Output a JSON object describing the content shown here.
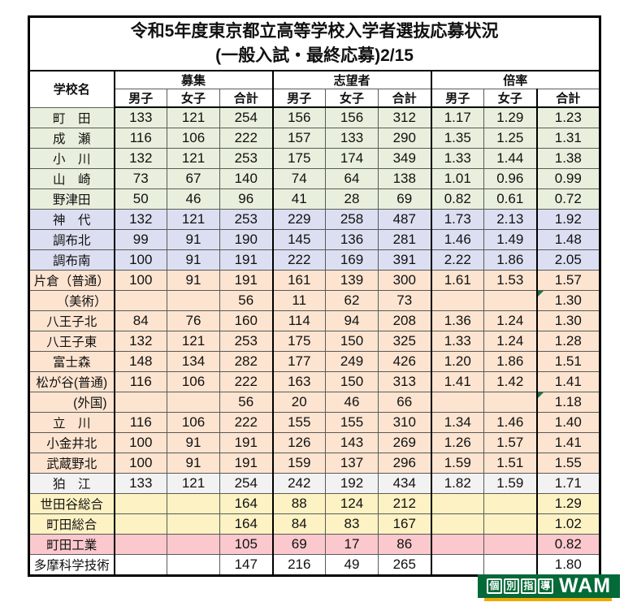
{
  "chart_data": {
    "type": "table",
    "title": "令和5年度東京都立高等学校入学者選抜応募状況",
    "subtitle": "(一般入試・最終応募)2/15",
    "row_header": "学校名",
    "column_groups": [
      {
        "label": "募集"
      },
      {
        "label": "志望者"
      },
      {
        "label": "倍率"
      }
    ],
    "sub_columns": [
      "男子",
      "女子",
      "合計"
    ],
    "rows": [
      {
        "school": "町　田",
        "bg": "green",
        "values": [
          "133",
          "121",
          "254",
          "156",
          "156",
          "312",
          "1.17",
          "1.29",
          "1.23"
        ]
      },
      {
        "school": "成　瀬",
        "bg": "green",
        "values": [
          "116",
          "106",
          "222",
          "157",
          "133",
          "290",
          "1.35",
          "1.25",
          "1.31"
        ]
      },
      {
        "school": "小　川",
        "bg": "green",
        "values": [
          "132",
          "121",
          "253",
          "175",
          "174",
          "349",
          "1.33",
          "1.44",
          "1.38"
        ]
      },
      {
        "school": "山　崎",
        "bg": "green",
        "values": [
          "73",
          "67",
          "140",
          "74",
          "64",
          "138",
          "1.01",
          "0.96",
          "0.99"
        ]
      },
      {
        "school": "野津田",
        "bg": "green",
        "values": [
          "50",
          "46",
          "96",
          "41",
          "28",
          "69",
          "0.82",
          "0.61",
          "0.72"
        ]
      },
      {
        "school": "神　代",
        "bg": "lavender",
        "values": [
          "132",
          "121",
          "253",
          "229",
          "258",
          "487",
          "1.73",
          "2.13",
          "1.92"
        ]
      },
      {
        "school": "調布北",
        "bg": "lavender",
        "values": [
          "99",
          "91",
          "190",
          "145",
          "136",
          "281",
          "1.46",
          "1.49",
          "1.48"
        ]
      },
      {
        "school": "調布南",
        "bg": "lavender",
        "values": [
          "100",
          "91",
          "191",
          "222",
          "169",
          "391",
          "2.22",
          "1.86",
          "2.05"
        ]
      },
      {
        "school": "片倉（普通）",
        "bg": "peach",
        "values": [
          "100",
          "91",
          "191",
          "161",
          "139",
          "300",
          "1.61",
          "1.53",
          "1.57"
        ]
      },
      {
        "school": "（美術）",
        "bg": "peach",
        "align": "right",
        "flag": true,
        "values": [
          "",
          "",
          "56",
          "11",
          "62",
          "73",
          "",
          "",
          "1.30"
        ]
      },
      {
        "school": "八王子北",
        "bg": "peach",
        "values": [
          "84",
          "76",
          "160",
          "114",
          "94",
          "208",
          "1.36",
          "1.24",
          "1.30"
        ]
      },
      {
        "school": "八王子東",
        "bg": "peach",
        "values": [
          "132",
          "121",
          "253",
          "175",
          "150",
          "325",
          "1.33",
          "1.24",
          "1.28"
        ]
      },
      {
        "school": "富士森",
        "bg": "peach",
        "values": [
          "148",
          "134",
          "282",
          "177",
          "249",
          "426",
          "1.20",
          "1.86",
          "1.51"
        ]
      },
      {
        "school": "松が谷(普通)",
        "bg": "peach",
        "values": [
          "116",
          "106",
          "222",
          "163",
          "150",
          "313",
          "1.41",
          "1.42",
          "1.41"
        ]
      },
      {
        "school": "(外国)",
        "bg": "peach",
        "align": "right",
        "flag": true,
        "values": [
          "",
          "",
          "56",
          "20",
          "46",
          "66",
          "",
          "",
          "1.18"
        ]
      },
      {
        "school": "立　川",
        "bg": "peach",
        "values": [
          "116",
          "106",
          "222",
          "155",
          "155",
          "310",
          "1.34",
          "1.46",
          "1.40"
        ]
      },
      {
        "school": "小金井北",
        "bg": "peach",
        "values": [
          "100",
          "91",
          "191",
          "126",
          "143",
          "269",
          "1.26",
          "1.57",
          "1.41"
        ]
      },
      {
        "school": "武蔵野北",
        "bg": "peach",
        "values": [
          "100",
          "91",
          "191",
          "159",
          "137",
          "296",
          "1.59",
          "1.51",
          "1.55"
        ]
      },
      {
        "school": "狛　江",
        "bg": "gray",
        "values": [
          "133",
          "121",
          "254",
          "242",
          "192",
          "434",
          "1.82",
          "1.59",
          "1.71"
        ]
      },
      {
        "school": "世田谷総合",
        "bg": "yellow",
        "values": [
          "",
          "",
          "164",
          "88",
          "124",
          "212",
          "",
          "",
          "1.29"
        ]
      },
      {
        "school": "町田総合",
        "bg": "yellow",
        "values": [
          "",
          "",
          "164",
          "84",
          "83",
          "167",
          "",
          "",
          "1.02"
        ]
      },
      {
        "school": "町田工業",
        "bg": "pink",
        "values": [
          "",
          "",
          "105",
          "69",
          "17",
          "86",
          "",
          "",
          "0.82"
        ]
      },
      {
        "school": "多摩科学技術",
        "bg": "white",
        "values": [
          "",
          "",
          "147",
          "216",
          "49",
          "265",
          "",
          "",
          "1.80"
        ]
      }
    ]
  },
  "palette": {
    "green": "#e8efdc",
    "lavender": "#dcdff1",
    "peach": "#fce4d0",
    "gray": "#f2f2f2",
    "yellow": "#fdf2c3",
    "pink": "#fac8cd",
    "white": "#ffffff",
    "flag_triangle": "#1e7145"
  },
  "logo": {
    "boxed_chars": [
      "個",
      "別",
      "指",
      "導"
    ],
    "brand": "WAM",
    "bg_color": "#046a38",
    "underline_color": "#eda900"
  }
}
